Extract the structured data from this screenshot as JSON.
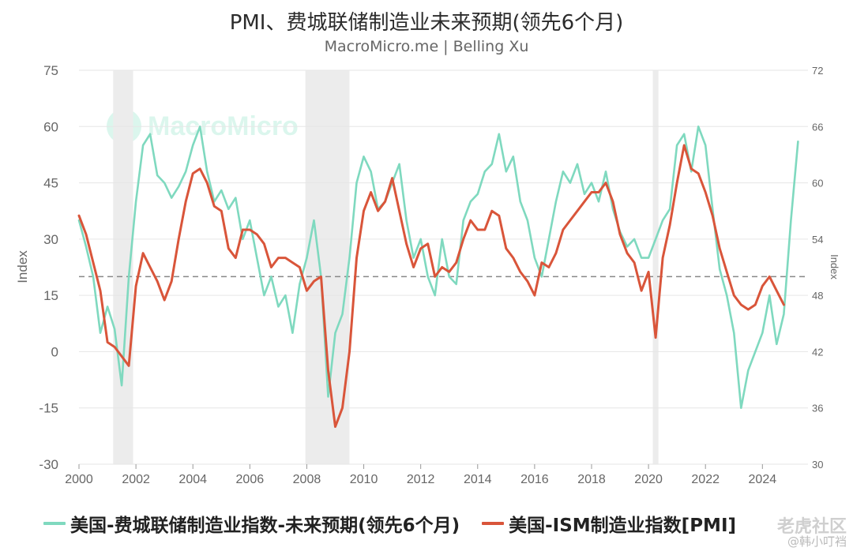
{
  "title": "PMI、费城联储制造业未来预期(领先6个月)",
  "subtitle": "MacroMicro.me | Belling Xu",
  "watermark": "MacroMicro",
  "corner_watermark": {
    "line1": "老虎社区",
    "line2": "@韩小叮裆"
  },
  "colors": {
    "philly": "#7fd9bf",
    "ism": "#d9553a",
    "recession": "#ececec",
    "grid": "#e6e6e6",
    "refline": "#888888"
  },
  "chart_data": {
    "type": "line",
    "title": "PMI、费城联储制造业未来预期(领先6个月)",
    "subtitle": "MacroMicro.me | Belling Xu",
    "xlabel": "",
    "ylabel_left": "Index",
    "ylabel_right": "Index",
    "ylim_left": [
      -30,
      75
    ],
    "ylim_right": [
      30,
      72
    ],
    "xlim": [
      2000,
      2025.6
    ],
    "yticks_left": [
      "75",
      "60",
      "45",
      "30",
      "15",
      "0",
      "-15",
      "-30"
    ],
    "yticks_right": [
      "72",
      "66",
      "60",
      "54",
      "48",
      "42",
      "36",
      "30"
    ],
    "xticks": [
      "2000",
      "2002",
      "2004",
      "2006",
      "2008",
      "2010",
      "2012",
      "2014",
      "2016",
      "2018",
      "2020",
      "2022",
      "2024"
    ],
    "grid": true,
    "legend_position": "bottom",
    "reference_line_right": 50,
    "recession_bands": [
      [
        2001.2,
        2001.9
      ],
      [
        2007.95,
        2009.5
      ],
      [
        2020.15,
        2020.35
      ]
    ],
    "series": [
      {
        "name": "美国-费城联储制造业指数-未来预期(领先6个月)",
        "axis": "left",
        "color": "#7fd9bf",
        "x": [
          2000.0,
          2000.25,
          2000.5,
          2000.75,
          2001.0,
          2001.25,
          2001.5,
          2001.75,
          2002.0,
          2002.25,
          2002.5,
          2002.75,
          2003.0,
          2003.25,
          2003.5,
          2003.75,
          2004.0,
          2004.25,
          2004.5,
          2004.75,
          2005.0,
          2005.25,
          2005.5,
          2005.75,
          2006.0,
          2006.25,
          2006.5,
          2006.75,
          2007.0,
          2007.25,
          2007.5,
          2007.75,
          2008.0,
          2008.25,
          2008.5,
          2008.75,
          2009.0,
          2009.25,
          2009.5,
          2009.75,
          2010.0,
          2010.25,
          2010.5,
          2010.75,
          2011.0,
          2011.25,
          2011.5,
          2011.75,
          2012.0,
          2012.25,
          2012.5,
          2012.75,
          2013.0,
          2013.25,
          2013.5,
          2013.75,
          2014.0,
          2014.25,
          2014.5,
          2014.75,
          2015.0,
          2015.25,
          2015.5,
          2015.75,
          2016.0,
          2016.25,
          2016.5,
          2016.75,
          2017.0,
          2017.25,
          2017.5,
          2017.75,
          2018.0,
          2018.25,
          2018.5,
          2018.75,
          2019.0,
          2019.25,
          2019.5,
          2019.75,
          2020.0,
          2020.25,
          2020.5,
          2020.75,
          2021.0,
          2021.25,
          2021.5,
          2021.75,
          2022.0,
          2022.25,
          2022.5,
          2022.75,
          2023.0,
          2023.25,
          2023.5,
          2023.75,
          2024.0,
          2024.25,
          2024.5,
          2024.75,
          2025.0,
          2025.25
        ],
        "y": [
          35,
          28,
          20,
          5,
          12,
          6,
          -9,
          20,
          40,
          55,
          58,
          47,
          45,
          41,
          44,
          48,
          55,
          60,
          48,
          40,
          43,
          38,
          41,
          30,
          35,
          25,
          15,
          20,
          12,
          15,
          5,
          18,
          25,
          35,
          20,
          -12,
          5,
          10,
          25,
          45,
          52,
          48,
          38,
          40,
          45,
          50,
          35,
          25,
          30,
          20,
          15,
          30,
          20,
          18,
          35,
          40,
          42,
          48,
          50,
          58,
          48,
          52,
          40,
          35,
          25,
          20,
          30,
          40,
          48,
          45,
          50,
          42,
          45,
          40,
          48,
          38,
          32,
          28,
          30,
          25,
          25,
          30,
          35,
          38,
          55,
          58,
          48,
          60,
          55,
          38,
          22,
          15,
          5,
          -15,
          -5,
          0,
          5,
          15,
          2,
          10,
          35,
          56
        ]
      },
      {
        "name": "美国-ISM制造业指数[PMI]",
        "axis": "right",
        "color": "#d9553a",
        "x": [
          2000.0,
          2000.25,
          2000.5,
          2000.75,
          2001.0,
          2001.25,
          2001.5,
          2001.75,
          2002.0,
          2002.25,
          2002.5,
          2002.75,
          2003.0,
          2003.25,
          2003.5,
          2003.75,
          2004.0,
          2004.25,
          2004.5,
          2004.75,
          2005.0,
          2005.25,
          2005.5,
          2005.75,
          2006.0,
          2006.25,
          2006.5,
          2006.75,
          2007.0,
          2007.25,
          2007.5,
          2007.75,
          2008.0,
          2008.25,
          2008.5,
          2008.75,
          2009.0,
          2009.25,
          2009.5,
          2009.75,
          2010.0,
          2010.25,
          2010.5,
          2010.75,
          2011.0,
          2011.25,
          2011.5,
          2011.75,
          2012.0,
          2012.25,
          2012.5,
          2012.75,
          2013.0,
          2013.25,
          2013.5,
          2013.75,
          2014.0,
          2014.25,
          2014.5,
          2014.75,
          2015.0,
          2015.25,
          2015.5,
          2015.75,
          2016.0,
          2016.25,
          2016.5,
          2016.75,
          2017.0,
          2017.25,
          2017.5,
          2017.75,
          2018.0,
          2018.25,
          2018.5,
          2018.75,
          2019.0,
          2019.25,
          2019.5,
          2019.75,
          2020.0,
          2020.25,
          2020.5,
          2020.75,
          2021.0,
          2021.25,
          2021.5,
          2021.75,
          2022.0,
          2022.25,
          2022.5,
          2022.75,
          2023.0,
          2023.25,
          2023.5,
          2023.75,
          2024.0,
          2024.25,
          2024.5,
          2024.75
        ],
        "y": [
          56.5,
          54.5,
          51.5,
          48.5,
          43,
          42.5,
          41.5,
          40.5,
          49,
          52.5,
          51,
          49.5,
          47.5,
          49.5,
          54,
          58,
          61,
          61.5,
          60,
          57.5,
          57,
          53,
          52,
          55,
          55,
          54.5,
          53.5,
          51,
          52,
          52,
          51.5,
          51,
          48.5,
          49.5,
          50,
          40,
          34,
          36,
          42,
          52,
          57,
          59,
          57,
          58,
          60.5,
          57,
          53.5,
          51,
          53,
          53.5,
          50,
          51,
          50.5,
          51.5,
          54,
          56,
          55,
          55,
          57,
          56.5,
          53,
          52,
          50.5,
          49.5,
          48,
          51.5,
          51,
          52.5,
          55,
          56,
          57,
          58,
          59,
          59,
          60,
          58,
          54.5,
          52.5,
          51.5,
          48.5,
          50.5,
          43.5,
          52,
          55.5,
          60,
          64,
          61.5,
          61,
          59,
          56.5,
          53,
          50.5,
          48,
          47,
          46.5,
          47,
          49,
          50,
          48.5,
          47
        ]
      }
    ]
  }
}
